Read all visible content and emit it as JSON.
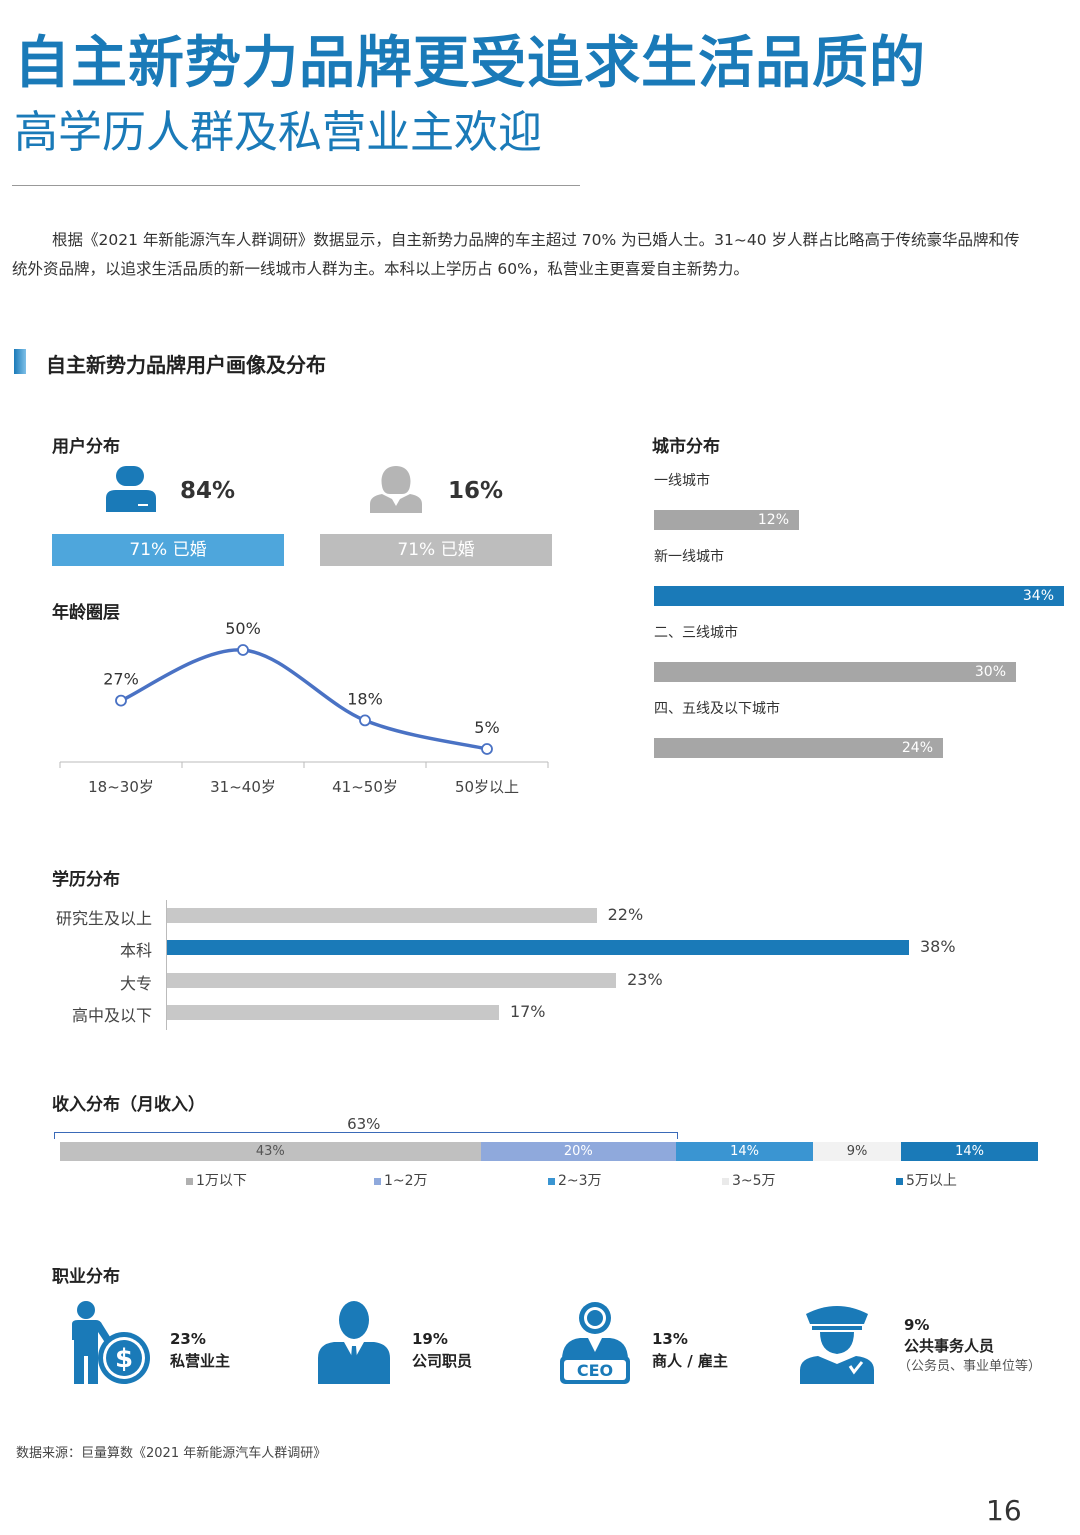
{
  "header": {
    "title_line1": "自主新势力品牌更受追求生活品质的",
    "title_line2": "高学历人群及私营业主欢迎"
  },
  "intro": "根据《2021 年新能源汽车人群调研》数据显示，自主新势力品牌的车主超过 70% 为已婚人士。31~40 岁人群占比略高于传统豪华品牌和传统外资品牌，以追求生活品质的新一线城市人群为主。本科以上学历占 60%，私营业主更喜爱自主新势力。",
  "section_title": "自主新势力品牌用户画像及分布",
  "user_dist": {
    "label": "用户分布",
    "male_pct": "84%",
    "female_pct": "16%",
    "male_married": "71%  已婚",
    "female_married": "71%  已婚",
    "colors": {
      "male": "#4ea6dc",
      "female": "#bdbdbd"
    }
  },
  "chart_data": [
    {
      "type": "line",
      "title": "年龄圈层",
      "categories": [
        "18~30岁",
        "31~40岁",
        "41~50岁",
        "50岁以上"
      ],
      "values": [
        27,
        50,
        18,
        5
      ],
      "value_labels": [
        "27%",
        "50%",
        "18%",
        "5%"
      ],
      "ylim": [
        0,
        60
      ],
      "color": "#4a72c4"
    },
    {
      "type": "bar",
      "orientation": "horizontal",
      "title": "城市分布",
      "categories": [
        "一线城市",
        "新一线城市",
        "二、三线城市",
        "四、五线及以下城市"
      ],
      "values": [
        12,
        34,
        30,
        24
      ],
      "value_labels": [
        "12%",
        "34%",
        "30%",
        "24%"
      ],
      "highlight": "新一线城市",
      "colors": {
        "normal": "#a6a6a6",
        "highlight": "#1a7ab8"
      }
    },
    {
      "type": "bar",
      "orientation": "horizontal",
      "title": "学历分布",
      "categories": [
        "研究生及以上",
        "本科",
        "大专",
        "高中及以下"
      ],
      "values": [
        22,
        38,
        23,
        17
      ],
      "value_labels": [
        "22%",
        "38%",
        "23%",
        "17%"
      ],
      "highlight": "本科",
      "colors": {
        "normal": "#c8c8c8",
        "highlight": "#1a7ab8"
      }
    },
    {
      "type": "bar",
      "orientation": "stacked-horizontal",
      "title": "收入分布（月收入）",
      "categories": [
        "1万以下",
        "1~2万",
        "2~3万",
        "3~5万",
        "5万以上"
      ],
      "values": [
        43,
        20,
        14,
        9,
        14
      ],
      "value_labels": [
        "43%",
        "20%",
        "14%",
        "9%",
        "14%"
      ],
      "bracket_label": "63%",
      "colors": [
        "#c0c0c0",
        "#8fa9dc",
        "#3a95d2",
        "#f2f2f2",
        "#1a7ab8"
      ],
      "legend_colors": [
        "#b0b0b0",
        "#8fa9dc",
        "#3a95d2",
        "#eaeaea",
        "#1a7ab8"
      ]
    }
  ],
  "age": {
    "label": "年龄圈层"
  },
  "city": {
    "label": "城市分布"
  },
  "edu": {
    "label": "学历分布"
  },
  "income": {
    "label": "收入分布（月收入）"
  },
  "occupation": {
    "label": "职业分布",
    "items": [
      {
        "pct": "23%",
        "label": "私营业主",
        "icon": "businessman-dollar-icon"
      },
      {
        "pct": "19%",
        "label": "公司职员",
        "icon": "office-worker-icon"
      },
      {
        "pct": "13%",
        "label": "商人 / 雇主",
        "icon": "ceo-icon",
        "badge": "CEO"
      },
      {
        "pct": "9%",
        "label": "公共事务人员",
        "sub": "（公务员、事业单位等）",
        "icon": "police-officer-icon"
      }
    ],
    "color": "#1a7ab8"
  },
  "source": "数据来源：巨量算数《2021 年新能源汽车人群调研》",
  "page_number": "16"
}
